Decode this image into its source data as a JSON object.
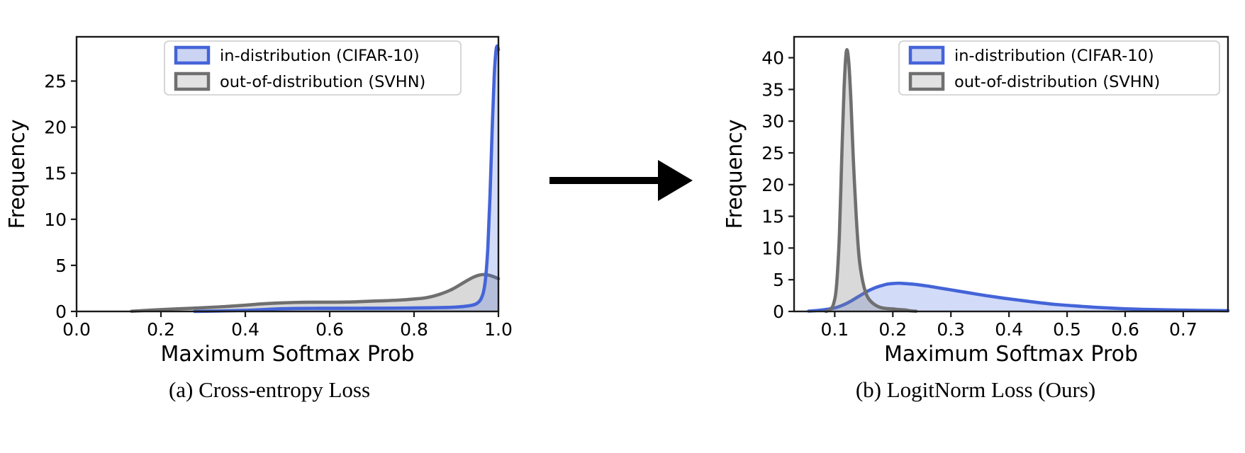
{
  "figure": {
    "background": "#ffffff",
    "arrow": {
      "color": "#000000",
      "direction": "right"
    },
    "spine_color": "#1a1a1a",
    "legend_border_color": "#cccccc",
    "legend_background": "#ffffff"
  },
  "chart_data": [
    {
      "id": "cross-entropy",
      "type": "area",
      "caption": "(a) Cross-entropy Loss",
      "xlabel": "Maximum Softmax Prob",
      "ylabel": "Frequency",
      "xlim": [
        0.0,
        1.0
      ],
      "ylim": [
        0,
        29.8
      ],
      "grid": false,
      "xticks": {
        "values": [
          0.0,
          0.2,
          0.4,
          0.6,
          0.8,
          1.0
        ],
        "labels": [
          "0.0",
          "0.2",
          "0.4",
          "0.6",
          "0.8",
          "1.0"
        ]
      },
      "yticks": {
        "values": [
          0,
          5,
          10,
          15,
          20,
          25
        ],
        "labels": [
          "0",
          "5",
          "10",
          "15",
          "20",
          "25"
        ]
      },
      "legend": {
        "position": "upper center-right",
        "entries": [
          "in-distribution (CIFAR-10)",
          "out-of-distribution (SVHN)"
        ]
      },
      "draw_order": [
        1,
        0
      ],
      "series": [
        {
          "name": "in-distribution (CIFAR-10)",
          "line_color": "#4464d8",
          "fill_color": "#4169e1",
          "fill_opacity": 0.24,
          "legend_fill": "#ccd4f4",
          "points": [
            [
              0.28,
              0.0
            ],
            [
              0.35,
              0.06
            ],
            [
              0.4,
              0.12
            ],
            [
              0.44,
              0.2
            ],
            [
              0.48,
              0.28
            ],
            [
              0.52,
              0.32
            ],
            [
              0.58,
              0.34
            ],
            [
              0.64,
              0.34
            ],
            [
              0.7,
              0.35
            ],
            [
              0.76,
              0.36
            ],
            [
              0.8,
              0.38
            ],
            [
              0.84,
              0.4
            ],
            [
              0.88,
              0.44
            ],
            [
              0.9,
              0.48
            ],
            [
              0.92,
              0.55
            ],
            [
              0.94,
              0.7
            ],
            [
              0.95,
              0.9
            ],
            [
              0.958,
              1.3
            ],
            [
              0.965,
              2.2
            ],
            [
              0.97,
              3.8
            ],
            [
              0.975,
              7.0
            ],
            [
              0.98,
              12.5
            ],
            [
              0.985,
              19.5
            ],
            [
              0.99,
              25.5
            ],
            [
              0.994,
              28.2
            ],
            [
              0.997,
              28.8
            ],
            [
              1.0,
              28.4
            ]
          ]
        },
        {
          "name": "out-of-distribution (SVHN)",
          "line_color": "#6f6f6f",
          "fill_color": "#808080",
          "fill_opacity": 0.3,
          "legend_fill": "#e2e2e2",
          "points": [
            [
              0.13,
              0.02
            ],
            [
              0.16,
              0.1
            ],
            [
              0.2,
              0.2
            ],
            [
              0.24,
              0.28
            ],
            [
              0.28,
              0.36
            ],
            [
              0.32,
              0.45
            ],
            [
              0.36,
              0.55
            ],
            [
              0.4,
              0.68
            ],
            [
              0.44,
              0.82
            ],
            [
              0.48,
              0.92
            ],
            [
              0.52,
              0.98
            ],
            [
              0.56,
              1.0
            ],
            [
              0.6,
              1.0
            ],
            [
              0.64,
              1.02
            ],
            [
              0.68,
              1.08
            ],
            [
              0.72,
              1.15
            ],
            [
              0.76,
              1.22
            ],
            [
              0.8,
              1.35
            ],
            [
              0.83,
              1.5
            ],
            [
              0.86,
              1.85
            ],
            [
              0.89,
              2.4
            ],
            [
              0.92,
              3.2
            ],
            [
              0.94,
              3.7
            ],
            [
              0.955,
              3.95
            ],
            [
              0.97,
              4.0
            ],
            [
              0.98,
              3.9
            ],
            [
              0.99,
              3.75
            ],
            [
              1.0,
              3.55
            ]
          ]
        }
      ]
    },
    {
      "id": "logitnorm",
      "type": "area",
      "caption": "(b) LogitNorm Loss (Ours)",
      "xlabel": "Maximum Softmax Prob",
      "ylabel": "Frequency",
      "xlim": [
        0.03,
        0.777
      ],
      "ylim": [
        0,
        43.3
      ],
      "grid": false,
      "xticks": {
        "values": [
          0.1,
          0.2,
          0.3,
          0.4,
          0.5,
          0.6,
          0.7
        ],
        "labels": [
          "0.1",
          "0.2",
          "0.3",
          "0.4",
          "0.5",
          "0.6",
          "0.7"
        ]
      },
      "yticks": {
        "values": [
          0,
          5,
          10,
          15,
          20,
          25,
          30,
          35,
          40
        ],
        "labels": [
          "0",
          "5",
          "10",
          "15",
          "20",
          "25",
          "30",
          "35",
          "40"
        ]
      },
      "legend": {
        "position": "upper right",
        "entries": [
          "in-distribution (CIFAR-10)",
          "out-of-distribution (SVHN)"
        ]
      },
      "draw_order": [
        0,
        1
      ],
      "series": [
        {
          "name": "in-distribution (CIFAR-10)",
          "line_color": "#4464d8",
          "fill_color": "#4169e1",
          "fill_opacity": 0.24,
          "legend_fill": "#ccd4f4",
          "points": [
            [
              0.055,
              0.05
            ],
            [
              0.07,
              0.15
            ],
            [
              0.08,
              0.25
            ],
            [
              0.09,
              0.38
            ],
            [
              0.1,
              0.55
            ],
            [
              0.11,
              0.85
            ],
            [
              0.12,
              1.25
            ],
            [
              0.13,
              1.75
            ],
            [
              0.14,
              2.3
            ],
            [
              0.15,
              2.85
            ],
            [
              0.16,
              3.35
            ],
            [
              0.17,
              3.75
            ],
            [
              0.18,
              4.05
            ],
            [
              0.19,
              4.3
            ],
            [
              0.2,
              4.4
            ],
            [
              0.21,
              4.45
            ],
            [
              0.22,
              4.4
            ],
            [
              0.24,
              4.25
            ],
            [
              0.26,
              4.0
            ],
            [
              0.28,
              3.7
            ],
            [
              0.3,
              3.4
            ],
            [
              0.33,
              2.95
            ],
            [
              0.36,
              2.5
            ],
            [
              0.39,
              2.1
            ],
            [
              0.42,
              1.75
            ],
            [
              0.45,
              1.4
            ],
            [
              0.48,
              1.1
            ],
            [
              0.51,
              0.9
            ],
            [
              0.54,
              0.7
            ],
            [
              0.57,
              0.55
            ],
            [
              0.6,
              0.42
            ],
            [
              0.63,
              0.33
            ],
            [
              0.66,
              0.27
            ],
            [
              0.69,
              0.22
            ],
            [
              0.72,
              0.18
            ],
            [
              0.75,
              0.15
            ],
            [
              0.777,
              0.12
            ]
          ]
        },
        {
          "name": "out-of-distribution (SVHN)",
          "line_color": "#6f6f6f",
          "fill_color": "#808080",
          "fill_opacity": 0.3,
          "legend_fill": "#e2e2e2",
          "points": [
            [
              0.085,
              0.0
            ],
            [
              0.092,
              0.3
            ],
            [
              0.098,
              1.2
            ],
            [
              0.103,
              4.0
            ],
            [
              0.108,
              12.0
            ],
            [
              0.112,
              24.0
            ],
            [
              0.116,
              35.0
            ],
            [
              0.12,
              41.0
            ],
            [
              0.124,
              39.5
            ],
            [
              0.128,
              33.0
            ],
            [
              0.132,
              24.0
            ],
            [
              0.137,
              15.0
            ],
            [
              0.142,
              8.5
            ],
            [
              0.148,
              4.8
            ],
            [
              0.154,
              2.8
            ],
            [
              0.16,
              1.8
            ],
            [
              0.17,
              1.0
            ],
            [
              0.18,
              0.6
            ],
            [
              0.19,
              0.45
            ],
            [
              0.2,
              0.4
            ],
            [
              0.21,
              0.3
            ],
            [
              0.22,
              0.25
            ],
            [
              0.23,
              0.1
            ],
            [
              0.24,
              0.03
            ]
          ]
        }
      ]
    }
  ]
}
